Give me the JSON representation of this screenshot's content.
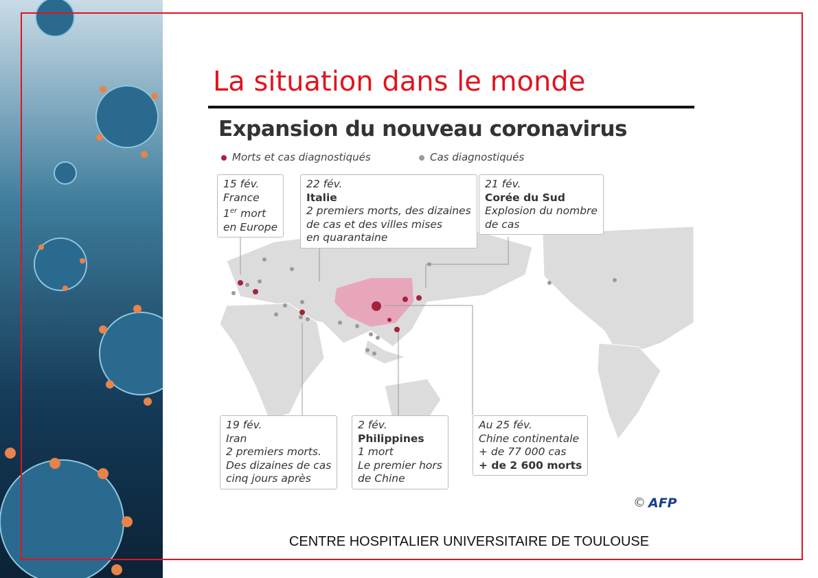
{
  "slide_title": "La situation dans le monde",
  "infographic": {
    "title": "Expansion du nouveau coronavirus",
    "legend": [
      {
        "label": "Morts et cas diagnostiqués",
        "color": "#a3243b"
      },
      {
        "label": "Cas diagnostiqués",
        "color": "#9a9a9a"
      }
    ],
    "callouts": [
      {
        "lines": [
          {
            "text": "15 fév."
          },
          {
            "text": "France"
          },
          {
            "text": "1",
            "sup": "er",
            "after": "mort"
          },
          {
            "text": "en Europe"
          }
        ]
      },
      {
        "lines": [
          {
            "text": "22 fév."
          },
          {
            "text": "Italie",
            "bold": true
          },
          {
            "text": "2 premiers morts, des dizaines"
          },
          {
            "text": "de cas et des villes mises"
          },
          {
            "text": "en quarantaine"
          }
        ]
      },
      {
        "lines": [
          {
            "text": "21 fév."
          },
          {
            "text": "Corée du Sud",
            "bold": true
          },
          {
            "text": "Explosion du nombre"
          },
          {
            "text": "de cas"
          }
        ]
      },
      {
        "lines": [
          {
            "text": "19 fév."
          },
          {
            "text": "Iran"
          },
          {
            "text": "2 premiers morts."
          },
          {
            "text": "Des dizaines de cas"
          },
          {
            "text": "cinq jours après"
          }
        ]
      },
      {
        "lines": [
          {
            "text": "2 fév."
          },
          {
            "text": "Philippines",
            "bold": true
          },
          {
            "text": "1 mort"
          },
          {
            "text": "Le premier hors"
          },
          {
            "text": "de Chine"
          }
        ]
      },
      {
        "lines": [
          {
            "text": "Au 25 fév."
          },
          {
            "text": "Chine continentale"
          },
          {
            "text": "+ de 77 000 cas"
          },
          {
            "text": "+ de 2 600 morts",
            "bold": true
          }
        ]
      }
    ],
    "credit": "©",
    "source": "AFP"
  },
  "footer": "CENTRE HOSPITALIER UNIVERSITAIRE DE TOULOUSE"
}
